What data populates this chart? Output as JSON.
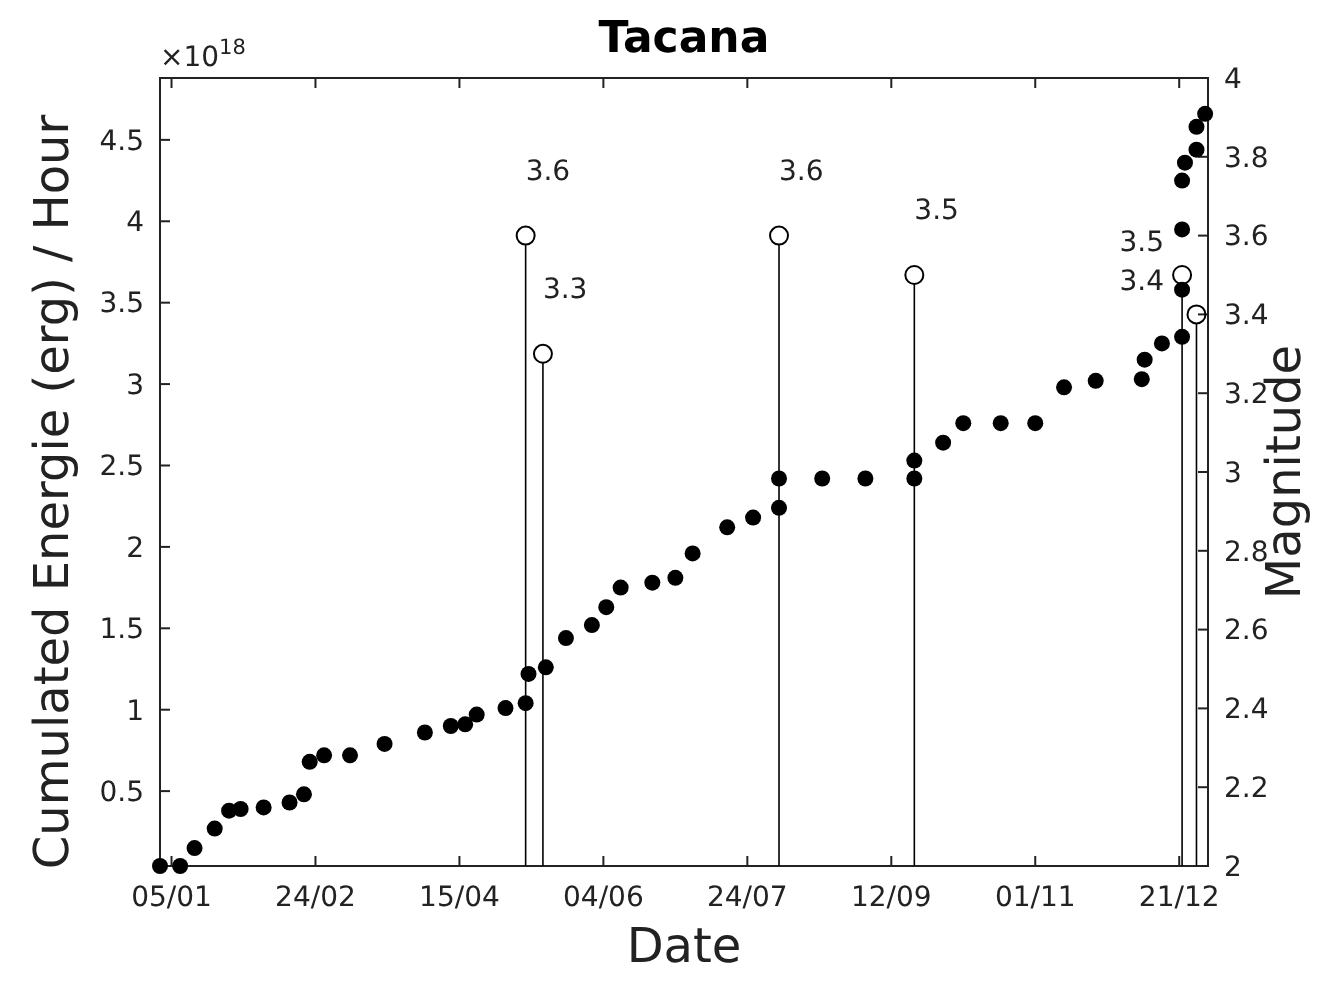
{
  "chart_data": {
    "type": "scatter",
    "title": "Tacana",
    "xlabel": "Date",
    "ylabel": "Cumulated Energie (erg) / Hour",
    "y2label": "Magnitude",
    "annotations": [
      "×10$^{18}$"
    ],
    "xlim": [
      "--01-01",
      "--12-31"
    ],
    "xticks": [
      {
        "value": "--01-05",
        "label": "05/01"
      },
      {
        "value": "--02-24",
        "label": "24/02"
      },
      {
        "value": "--04-15",
        "label": "15/04"
      },
      {
        "value": "--06-04",
        "label": "04/06"
      },
      {
        "value": "--07-24",
        "label": "24/07"
      },
      {
        "value": "--09-12",
        "label": "12/09"
      },
      {
        "value": "--11-01",
        "label": "01/11"
      },
      {
        "value": "--12-21",
        "label": "21/12"
      }
    ],
    "ylim": [
      0.04,
      4.88
    ],
    "yticks": [
      0.5,
      1,
      1.5,
      2,
      2.5,
      3,
      3.5,
      4,
      4.5
    ],
    "y2lim": [
      2,
      4
    ],
    "y2ticks": [
      2,
      2.2,
      2.4,
      2.6,
      2.8,
      3,
      3.2,
      3.4,
      3.6,
      3.8,
      4
    ],
    "series": [
      {
        "marker": "circle",
        "color": "#000000",
        "x": [
          "--01-01",
          "--01-08",
          "--01-13",
          "--01-20",
          "--01-25",
          "--01-29",
          "--02-06",
          "--02-15",
          "--02-20",
          "--02-22",
          "--02-27",
          "--03-08",
          "--03-20",
          "--04-03",
          "--04-12",
          "--04-17",
          "--04-21",
          "--05-01",
          "--05-08",
          "--05-09",
          "--05-15",
          "--05-22",
          "--05-31",
          "--06-05",
          "--06-10",
          "--06-21",
          "--06-29",
          "--07-05",
          "--07-17",
          "--07-26",
          "--08-04",
          "--08-04",
          "--08-19",
          "--09-03",
          "--09-20",
          "--09-20",
          "--09-30",
          "--10-07",
          "--10-20",
          "--11-01",
          "--11-11",
          "--11-22",
          "--12-08",
          "--12-09",
          "--12-15",
          "--12-22",
          "--12-22",
          "--12-22",
          "--12-22",
          "--12-23",
          "--12-27",
          "--12-27",
          "--12-30"
        ],
        "values": [
          0.04,
          0.04,
          0.15,
          0.27,
          0.38,
          0.39,
          0.4,
          0.43,
          0.48,
          0.68,
          0.72,
          0.72,
          0.79,
          0.86,
          0.9,
          0.91,
          0.97,
          1.01,
          1.04,
          1.22,
          1.26,
          1.44,
          1.52,
          1.63,
          1.75,
          1.78,
          1.81,
          1.96,
          2.12,
          2.18,
          2.24,
          2.42,
          2.42,
          2.42,
          2.42,
          2.53,
          2.64,
          2.76,
          2.76,
          2.76,
          2.98,
          3.02,
          3.03,
          3.15,
          3.25,
          3.29,
          3.58,
          3.95,
          4.25,
          4.36,
          4.44,
          4.58,
          4.66
        ]
      },
      {
        "type": "lollipop",
        "axis": "y2",
        "marker": "circle",
        "color": "#000000",
        "x": [
          "--05-08",
          "--05-14",
          "--08-04",
          "--09-20",
          "--12-22",
          "--12-27"
        ],
        "values": [
          3.6,
          3.3,
          3.6,
          3.5,
          3.5,
          3.4
        ],
        "value_labels": [
          "3.6",
          "3.3",
          "3.6",
          "3.5",
          "3.5",
          "3.4"
        ]
      }
    ]
  }
}
